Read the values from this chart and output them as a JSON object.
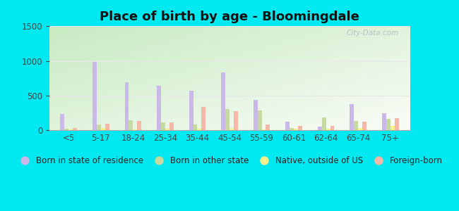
{
  "title": "Place of birth by age - Bloomingdale",
  "categories": [
    "<5",
    "5-17",
    "18-24",
    "25-34",
    "35-44",
    "45-54",
    "55-59",
    "60-61",
    "62-64",
    "65-74",
    "75+"
  ],
  "series": {
    "Born in state of residence": [
      230,
      990,
      690,
      640,
      570,
      830,
      440,
      120,
      50,
      380,
      240
    ],
    "Born in other state": [
      20,
      80,
      140,
      110,
      80,
      310,
      280,
      30,
      180,
      130,
      160
    ],
    "Native, outside of US": [
      10,
      30,
      10,
      20,
      20,
      20,
      10,
      20,
      20,
      30,
      60
    ],
    "Foreign-born": [
      30,
      90,
      130,
      110,
      340,
      270,
      80,
      60,
      60,
      120,
      170
    ]
  },
  "colors": {
    "Born in state of residence": "#c9b8e8",
    "Born in other state": "#c5d9a0",
    "Native, outside of US": "#f5f08a",
    "Foreign-born": "#f5b8a8"
  },
  "ylim": [
    0,
    1500
  ],
  "yticks": [
    0,
    500,
    1000,
    1500
  ],
  "bg_outer": "#00e8f0",
  "watermark": "City-Data.com",
  "bar_width": 0.13,
  "title_fontsize": 13,
  "legend_fontsize": 8.5,
  "grid_color": "#e8e8e8"
}
